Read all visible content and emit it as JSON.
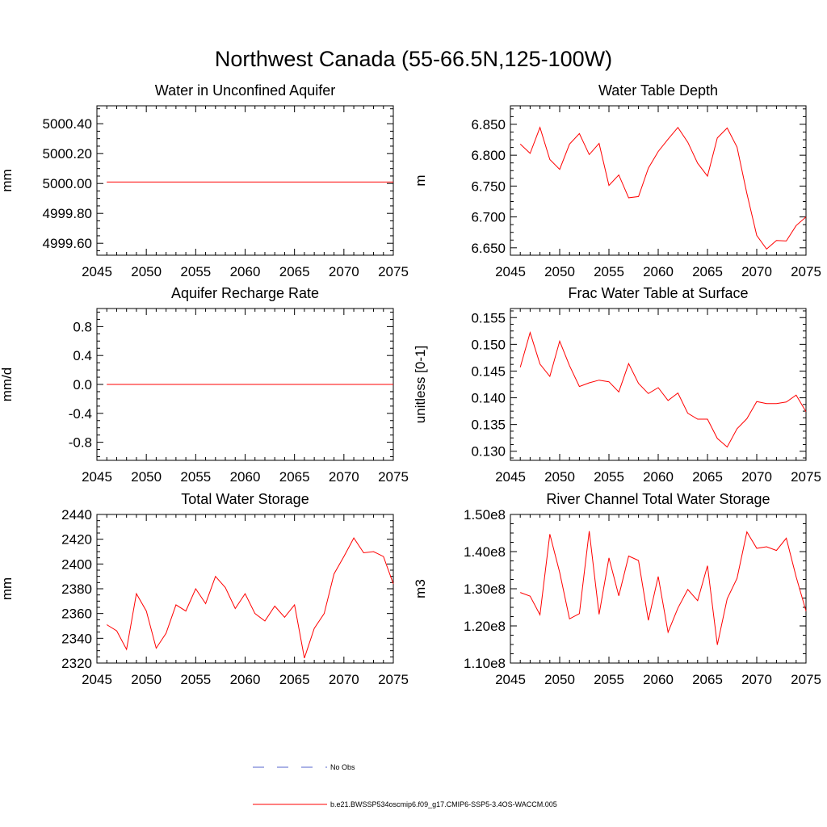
{
  "title": "Northwest Canada (55-66.5N,125-100W)",
  "colors": {
    "model": "#ff0000",
    "obs": "#5566cc",
    "axis": "#000000"
  },
  "legend": [
    {
      "label": "No Obs",
      "style": "dashed",
      "color": "#5566cc"
    },
    {
      "label": "b.e21.BWSSP534oscmip6.f09_g17.CMIP6-SSP5-3.4OS-WACCM.005",
      "style": "solid",
      "color": "#ff0000"
    }
  ],
  "chart_data": [
    {
      "type": "line",
      "title": "Water in Unconfined Aquifer",
      "ylabel": "mm",
      "xlim": [
        2045,
        2075
      ],
      "ylim": [
        4999.52,
        5000.52
      ],
      "xticks": [
        2045,
        2050,
        2055,
        2060,
        2065,
        2070,
        2075
      ],
      "xtick_labels": [
        "2045",
        "2050",
        "2055",
        "2060",
        "2065",
        "2070",
        "2075"
      ],
      "yticks": [
        4999.6,
        4999.8,
        5000.0,
        5000.2,
        5000.4
      ],
      "ytick_labels": [
        "4999.60",
        "4999.80",
        "5000.00",
        "5000.20",
        "5000.40"
      ],
      "x": [
        2046,
        2075
      ],
      "values": [
        5000.01,
        5000.01
      ]
    },
    {
      "type": "line",
      "title": "Water Table Depth",
      "ylabel": "m",
      "xlim": [
        2045,
        2075
      ],
      "ylim": [
        6.638,
        6.88
      ],
      "xticks": [
        2045,
        2050,
        2055,
        2060,
        2065,
        2070,
        2075
      ],
      "xtick_labels": [
        "2045",
        "2050",
        "2055",
        "2060",
        "2065",
        "2070",
        "2075"
      ],
      "yticks": [
        6.65,
        6.7,
        6.75,
        6.8,
        6.85
      ],
      "ytick_labels": [
        "6.650",
        "6.700",
        "6.750",
        "6.800",
        "6.850"
      ],
      "x": [
        2046,
        2047,
        2048,
        2049,
        2050,
        2051,
        2052,
        2053,
        2054,
        2055,
        2056,
        2057,
        2058,
        2059,
        2060,
        2061,
        2062,
        2063,
        2064,
        2065,
        2066,
        2067,
        2068,
        2069,
        2070,
        2071,
        2072,
        2073,
        2074,
        2075
      ],
      "values": [
        6.818,
        6.803,
        6.845,
        6.793,
        6.777,
        6.818,
        6.835,
        6.801,
        6.819,
        6.751,
        6.768,
        6.731,
        6.733,
        6.779,
        6.806,
        6.826,
        6.845,
        6.821,
        6.787,
        6.766,
        6.828,
        6.844,
        6.813,
        6.738,
        6.67,
        6.648,
        6.662,
        6.661,
        6.686,
        6.7
      ]
    },
    {
      "type": "line",
      "title": "Aquifer Recharge Rate",
      "ylabel": "mm/d",
      "xlim": [
        2045,
        2075
      ],
      "ylim": [
        -1.05,
        1.05
      ],
      "xticks": [
        2045,
        2050,
        2055,
        2060,
        2065,
        2070,
        2075
      ],
      "xtick_labels": [
        "2045",
        "2050",
        "2055",
        "2060",
        "2065",
        "2070",
        "2075"
      ],
      "yticks": [
        -0.8,
        -0.4,
        0.0,
        0.4,
        0.8
      ],
      "ytick_labels": [
        "-0.8",
        "-0.4",
        "0.0",
        "0.4",
        "0.8"
      ],
      "x": [
        2046,
        2075
      ],
      "values": [
        0.0,
        0.0
      ]
    },
    {
      "type": "line",
      "title": "Frac Water Table at Surface",
      "ylabel": "unitless [0-1]",
      "xlim": [
        2045,
        2075
      ],
      "ylim": [
        0.1283,
        0.1567
      ],
      "xticks": [
        2045,
        2050,
        2055,
        2060,
        2065,
        2070,
        2075
      ],
      "xtick_labels": [
        "2045",
        "2050",
        "2055",
        "2060",
        "2065",
        "2070",
        "2075"
      ],
      "yticks": [
        0.13,
        0.135,
        0.14,
        0.145,
        0.15,
        0.155
      ],
      "ytick_labels": [
        "0.130",
        "0.135",
        "0.140",
        "0.145",
        "0.150",
        "0.155"
      ],
      "x": [
        2046,
        2047,
        2048,
        2049,
        2050,
        2051,
        2052,
        2053,
        2054,
        2055,
        2056,
        2057,
        2058,
        2059,
        2060,
        2061,
        2062,
        2063,
        2064,
        2065,
        2066,
        2067,
        2068,
        2069,
        2070,
        2071,
        2072,
        2073,
        2074,
        2075
      ],
      "values": [
        0.1457,
        0.1522,
        0.1463,
        0.144,
        0.1506,
        0.146,
        0.1421,
        0.1428,
        0.1433,
        0.143,
        0.1411,
        0.1464,
        0.1427,
        0.1408,
        0.1419,
        0.1395,
        0.1409,
        0.1371,
        0.136,
        0.136,
        0.1324,
        0.1308,
        0.1342,
        0.1361,
        0.1393,
        0.1389,
        0.1389,
        0.1392,
        0.1405,
        0.1374
      ]
    },
    {
      "type": "line",
      "title": "Total Water Storage",
      "ylabel": "mm",
      "xlim": [
        2045,
        2075
      ],
      "ylim": [
        2320,
        2440
      ],
      "xticks": [
        2045,
        2050,
        2055,
        2060,
        2065,
        2070,
        2075
      ],
      "xtick_labels": [
        "2045",
        "2050",
        "2055",
        "2060",
        "2065",
        "2070",
        "2075"
      ],
      "yticks": [
        2320,
        2340,
        2360,
        2380,
        2400,
        2420,
        2440
      ],
      "ytick_labels": [
        "2320",
        "2340",
        "2360",
        "2380",
        "2400",
        "2420",
        "2440"
      ],
      "x": [
        2046,
        2047,
        2048,
        2049,
        2050,
        2051,
        2052,
        2053,
        2054,
        2055,
        2056,
        2057,
        2058,
        2059,
        2060,
        2061,
        2062,
        2063,
        2064,
        2065,
        2066,
        2067,
        2068,
        2069,
        2070,
        2071,
        2072,
        2073,
        2074,
        2075
      ],
      "values": [
        2351,
        2346,
        2331,
        2376,
        2362,
        2332,
        2344,
        2367,
        2362,
        2380,
        2368,
        2390,
        2381,
        2364,
        2376,
        2360,
        2354,
        2366,
        2357,
        2367,
        2324,
        2348,
        2360,
        2392,
        2406,
        2421,
        2409,
        2410,
        2406,
        2384
      ]
    },
    {
      "type": "line",
      "title": "River Channel Total Water Storage",
      "ylabel": "m3",
      "xlim": [
        2045,
        2075
      ],
      "ylim": [
        110000000.0,
        150000000.0
      ],
      "xticks": [
        2045,
        2050,
        2055,
        2060,
        2065,
        2070,
        2075
      ],
      "xtick_labels": [
        "2045",
        "2050",
        "2055",
        "2060",
        "2065",
        "2070",
        "2075"
      ],
      "yticks": [
        110000000.0,
        120000000.0,
        130000000.0,
        140000000.0,
        150000000.0
      ],
      "ytick_labels": [
        "1.10e8",
        "1.20e8",
        "1.30e8",
        "1.40e8",
        "1.50e8"
      ],
      "x": [
        2046,
        2047,
        2048,
        2049,
        2050,
        2051,
        2052,
        2053,
        2054,
        2055,
        2056,
        2057,
        2058,
        2059,
        2060,
        2061,
        2062,
        2063,
        2064,
        2065,
        2066,
        2067,
        2068,
        2069,
        2070,
        2071,
        2072,
        2073,
        2074,
        2075
      ],
      "values": [
        129000000.0,
        128000000.0,
        123000000.0,
        144700000.0,
        134400000.0,
        121900000.0,
        123300000.0,
        145500000.0,
        123100000.0,
        138300000.0,
        128100000.0,
        138800000.0,
        137600000.0,
        121500000.0,
        133300000.0,
        118300000.0,
        124800000.0,
        129800000.0,
        126800000.0,
        136200000.0,
        114900000.0,
        127300000.0,
        132800000.0,
        145300000.0,
        140900000.0,
        141300000.0,
        140300000.0,
        143600000.0,
        133200000.0,
        124000000.0
      ]
    }
  ]
}
